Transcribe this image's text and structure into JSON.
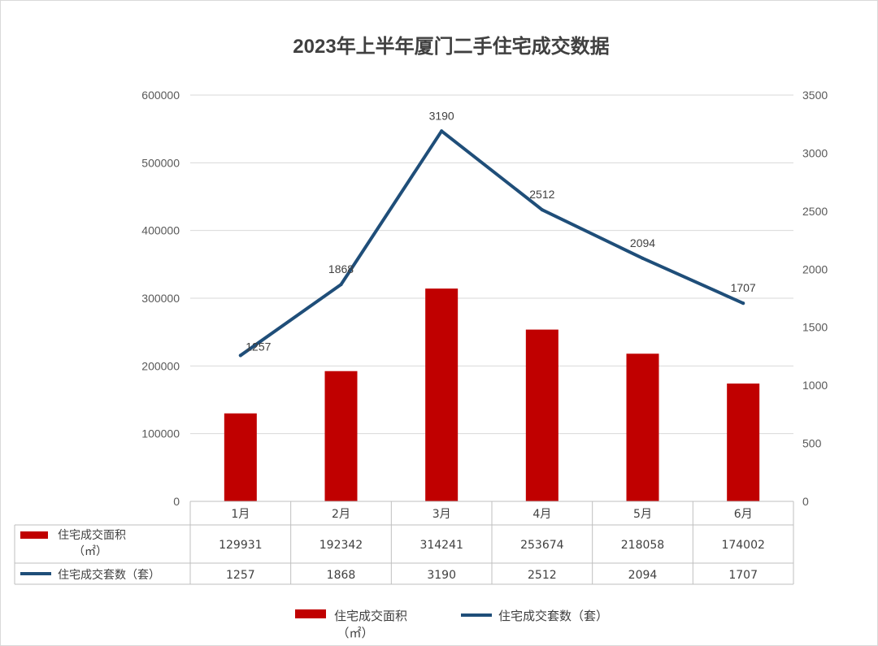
{
  "chart_data": {
    "type": "bar",
    "title": "2023年上半年厦门二手住宅成交数据",
    "categories": [
      "1月",
      "2月",
      "3月",
      "4月",
      "5月",
      "6月"
    ],
    "series": [
      {
        "name": "住宅成交面积",
        "unit": "（㎡）",
        "type": "bar",
        "axis": "left",
        "color": "#c00000",
        "values": [
          129931,
          192342,
          314241,
          253674,
          218058,
          174002
        ]
      },
      {
        "name": "住宅成交套数（套）",
        "type": "line",
        "axis": "right",
        "color": "#1f4e79",
        "values": [
          1257,
          1868,
          3190,
          2512,
          2094,
          1707
        ]
      }
    ],
    "y_left": {
      "ylim": [
        0,
        600000
      ],
      "ticks": [
        0,
        100000,
        200000,
        300000,
        400000,
        500000,
        600000
      ]
    },
    "y_right": {
      "ylim": [
        0,
        3500
      ],
      "ticks": [
        0,
        500,
        1000,
        1500,
        2000,
        2500,
        3000,
        3500
      ]
    },
    "grid": true,
    "data_table": true,
    "legend_position": "bottom"
  }
}
